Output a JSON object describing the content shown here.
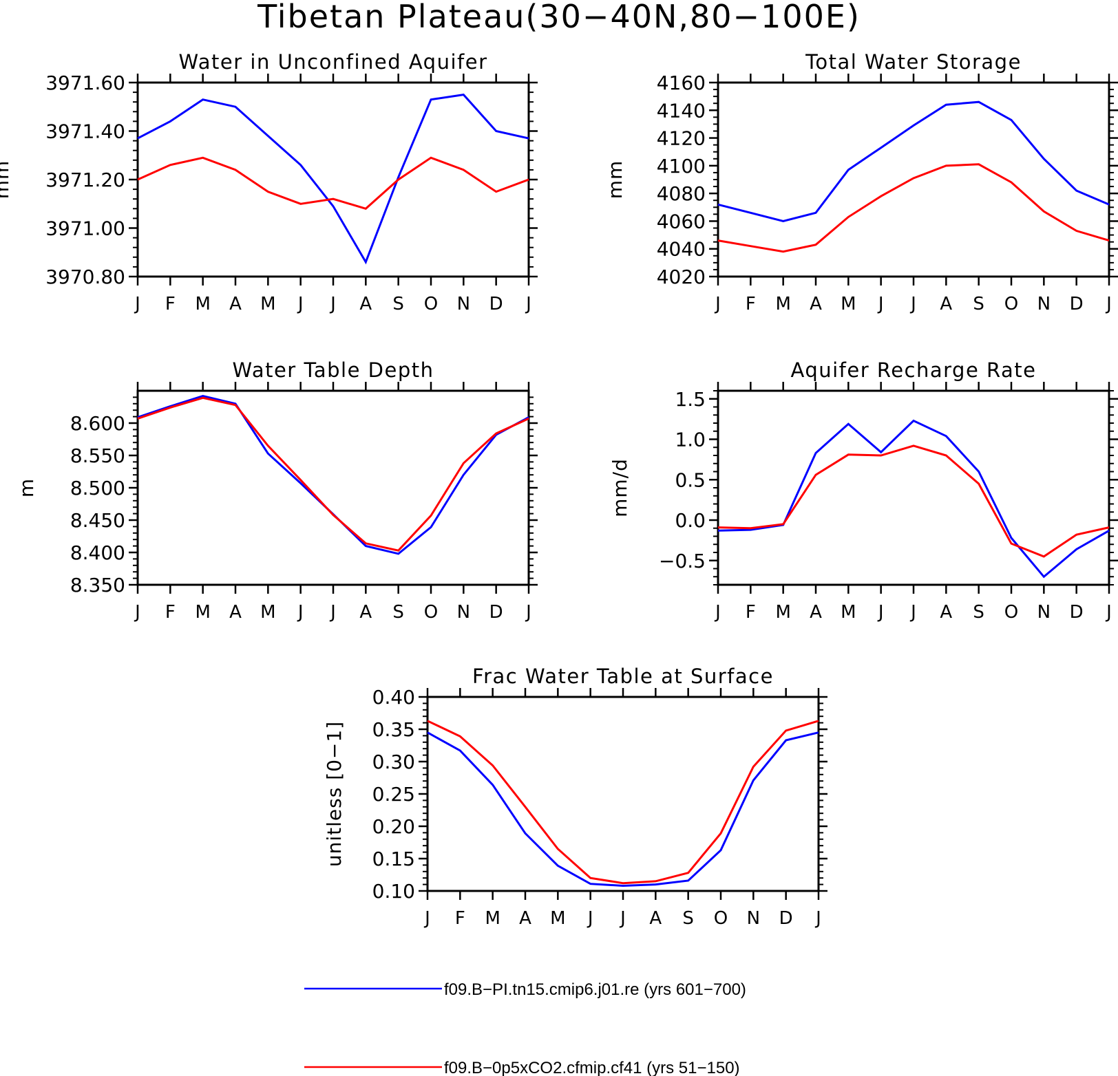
{
  "title": "Tibetan Plateau(30−40N,80−100E)",
  "months": [
    "J",
    "F",
    "M",
    "A",
    "M",
    "J",
    "J",
    "A",
    "S",
    "O",
    "N",
    "D",
    "J"
  ],
  "legend": [
    {
      "label": "f09.B−PI.tn15.cmip6.j01.re (yrs 601−700)",
      "color": "#0000ff"
    },
    {
      "label": "f09.B−0p5xCO2.cfmip.cf41 (yrs 51−150)",
      "color": "#ff0000"
    }
  ],
  "chart_data": [
    {
      "type": "line",
      "title": "Water in Unconfined Aquifer",
      "ylabel": "mm",
      "ylim": [
        3970.8,
        3971.6
      ],
      "yticks": [
        3970.8,
        3971.0,
        3971.2,
        3971.4,
        3971.6
      ],
      "ytick_labels": [
        "3970.80",
        "3971.00",
        "3971.20",
        "3971.40",
        "3971.60"
      ],
      "x": [
        "J",
        "F",
        "M",
        "A",
        "M",
        "J",
        "J",
        "A",
        "S",
        "O",
        "N",
        "D",
        "J"
      ],
      "series": [
        {
          "color": "#0000ff",
          "values": [
            3971.37,
            3971.44,
            3971.53,
            3971.5,
            3971.38,
            3971.26,
            3971.09,
            3970.86,
            3971.21,
            3971.53,
            3971.55,
            3971.4,
            3971.37
          ]
        },
        {
          "color": "#ff0000",
          "values": [
            3971.2,
            3971.26,
            3971.29,
            3971.24,
            3971.15,
            3971.1,
            3971.12,
            3971.08,
            3971.2,
            3971.29,
            3971.24,
            3971.15,
            3971.2
          ]
        }
      ]
    },
    {
      "type": "line",
      "title": "Total Water Storage",
      "ylabel": "mm",
      "ylim": [
        4020,
        4160
      ],
      "yticks": [
        4020,
        4040,
        4060,
        4080,
        4100,
        4120,
        4140,
        4160
      ],
      "ytick_labels": [
        "4020",
        "4040",
        "4060",
        "4080",
        "4100",
        "4120",
        "4140",
        "4160"
      ],
      "x": [
        "J",
        "F",
        "M",
        "A",
        "M",
        "J",
        "J",
        "A",
        "S",
        "O",
        "N",
        "D",
        "J"
      ],
      "series": [
        {
          "color": "#0000ff",
          "values": [
            4072,
            4066,
            4060,
            4066,
            4097,
            4113,
            4129,
            4144,
            4146,
            4133,
            4105,
            4082,
            4072
          ]
        },
        {
          "color": "#ff0000",
          "values": [
            4046,
            4042,
            4038,
            4043,
            4063,
            4078,
            4091,
            4100,
            4101,
            4088,
            4067,
            4053,
            4046
          ]
        }
      ]
    },
    {
      "type": "line",
      "title": "Water Table Depth",
      "ylabel": "m",
      "ylim": [
        8.35,
        8.65
      ],
      "yticks": [
        8.35,
        8.4,
        8.45,
        8.5,
        8.55,
        8.6
      ],
      "ytick_labels": [
        "8.350",
        "8.400",
        "8.450",
        "8.500",
        "8.550",
        "8.600"
      ],
      "x": [
        "J",
        "F",
        "M",
        "A",
        "M",
        "J",
        "J",
        "A",
        "S",
        "O",
        "N",
        "D",
        "J"
      ],
      "series": [
        {
          "color": "#0000ff",
          "values": [
            8.609,
            8.626,
            8.642,
            8.63,
            8.553,
            8.507,
            8.459,
            8.41,
            8.398,
            8.439,
            8.52,
            8.582,
            8.609
          ]
        },
        {
          "color": "#ff0000",
          "values": [
            8.607,
            8.624,
            8.639,
            8.628,
            8.565,
            8.512,
            8.458,
            8.414,
            8.403,
            8.457,
            8.538,
            8.584,
            8.607
          ]
        }
      ]
    },
    {
      "type": "line",
      "title": "Aquifer Recharge Rate",
      "ylabel": "mm/d",
      "ylim": [
        -0.8,
        1.6
      ],
      "yticks": [
        -0.5,
        0.0,
        0.5,
        1.0,
        1.5
      ],
      "ytick_labels": [
        "−0.5",
        "0.0",
        "0.5",
        "1.0",
        "1.5"
      ],
      "x": [
        "J",
        "F",
        "M",
        "A",
        "M",
        "J",
        "J",
        "A",
        "S",
        "O",
        "N",
        "D",
        "J"
      ],
      "series": [
        {
          "color": "#0000ff",
          "values": [
            -0.13,
            -0.12,
            -0.06,
            0.83,
            1.19,
            0.84,
            1.23,
            1.04,
            0.6,
            -0.22,
            -0.7,
            -0.36,
            -0.13
          ]
        },
        {
          "color": "#ff0000",
          "values": [
            -0.09,
            -0.1,
            -0.05,
            0.56,
            0.81,
            0.8,
            0.92,
            0.8,
            0.45,
            -0.29,
            -0.45,
            -0.18,
            -0.09
          ]
        }
      ]
    },
    {
      "type": "line",
      "title": "Frac Water Table at Surface",
      "ylabel": "unitless [0−1]",
      "ylim": [
        0.1,
        0.4
      ],
      "yticks": [
        0.1,
        0.15,
        0.2,
        0.25,
        0.3,
        0.35,
        0.4
      ],
      "ytick_labels": [
        "0.10",
        "0.15",
        "0.20",
        "0.25",
        "0.30",
        "0.35",
        "0.40"
      ],
      "x": [
        "J",
        "F",
        "M",
        "A",
        "M",
        "J",
        "J",
        "A",
        "S",
        "O",
        "N",
        "D",
        "J"
      ],
      "series": [
        {
          "color": "#0000ff",
          "values": [
            0.345,
            0.317,
            0.264,
            0.189,
            0.139,
            0.111,
            0.108,
            0.11,
            0.116,
            0.163,
            0.271,
            0.333,
            0.345
          ]
        },
        {
          "color": "#ff0000",
          "values": [
            0.363,
            0.339,
            0.294,
            0.23,
            0.165,
            0.12,
            0.112,
            0.115,
            0.128,
            0.189,
            0.292,
            0.348,
            0.363
          ]
        }
      ]
    }
  ]
}
